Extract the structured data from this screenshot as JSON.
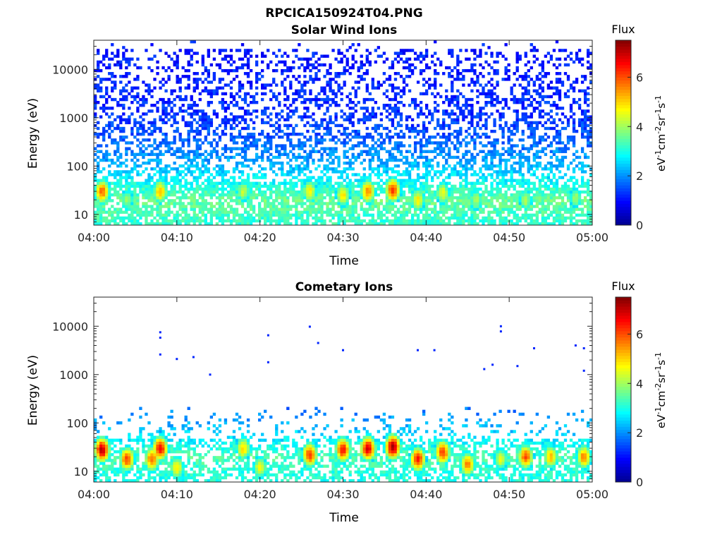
{
  "figure_title": "RPCICA150924T04.PNG",
  "colors": {
    "axis": "#262626",
    "colormap": [
      "#00008f",
      "#0000ff",
      "#0080ff",
      "#00ffff",
      "#80ff80",
      "#ffff00",
      "#ff8000",
      "#ff0000",
      "#800000"
    ]
  },
  "chart_data": [
    {
      "type": "heatmap",
      "title": "Solar Wind Ions",
      "xlabel": "Time",
      "ylabel": "Energy (eV)",
      "y_scale": "log",
      "xlim": [
        "04:00",
        "05:00"
      ],
      "ylim": [
        6,
        40000
      ],
      "xticks": [
        "04:00",
        "04:10",
        "04:20",
        "04:30",
        "04:40",
        "04:50",
        "05:00"
      ],
      "yticks": [
        10,
        100,
        1000,
        10000
      ],
      "ytick_labels": [
        "10",
        "100",
        "1000",
        "10000"
      ],
      "colorbar": {
        "label": "Flux",
        "units": "eV-1cm-2sr-1s-1",
        "range": [
          0,
          7.5
        ],
        "ticks": [
          0,
          2,
          4,
          6
        ]
      },
      "flux_profile": [
        {
          "energy_eV": 8,
          "level": 3.2
        },
        {
          "energy_eV": 20,
          "level": 3.6
        },
        {
          "energy_eV": 50,
          "level": 2.8
        },
        {
          "energy_eV": 100,
          "level": 2.3
        },
        {
          "energy_eV": 300,
          "level": 1.7
        },
        {
          "energy_eV": 1000,
          "level": 1.3
        },
        {
          "energy_eV": 10000,
          "level": 1.1
        }
      ],
      "bursts": [
        {
          "time": "04:01",
          "energy_eV": 30,
          "flux": 5.8
        },
        {
          "time": "04:04",
          "energy_eV": 20,
          "flux": 4.0
        },
        {
          "time": "04:08",
          "energy_eV": 30,
          "flux": 5.2
        },
        {
          "time": "04:18",
          "energy_eV": 30,
          "flux": 4.3
        },
        {
          "time": "04:26",
          "energy_eV": 30,
          "flux": 4.8
        },
        {
          "time": "04:30",
          "energy_eV": 25,
          "flux": 4.9
        },
        {
          "time": "04:33",
          "energy_eV": 30,
          "flux": 5.6
        },
        {
          "time": "04:36",
          "energy_eV": 32,
          "flux": 6.2
        },
        {
          "time": "04:39",
          "energy_eV": 20,
          "flux": 4.8
        },
        {
          "time": "04:42",
          "energy_eV": 28,
          "flux": 4.6
        },
        {
          "time": "04:46",
          "energy_eV": 20,
          "flux": 4.1
        },
        {
          "time": "04:52",
          "energy_eV": 20,
          "flux": 4.1
        },
        {
          "time": "04:58",
          "energy_eV": 22,
          "flux": 4.0
        }
      ]
    },
    {
      "type": "heatmap",
      "title": "Cometary Ions",
      "xlabel": "Time",
      "ylabel": "Energy (eV)",
      "y_scale": "log",
      "xlim": [
        "04:00",
        "05:00"
      ],
      "ylim": [
        6,
        40000
      ],
      "xticks": [
        "04:00",
        "04:10",
        "04:20",
        "04:30",
        "04:40",
        "04:50",
        "05:00"
      ],
      "yticks": [
        10,
        100,
        1000,
        10000
      ],
      "ytick_labels": [
        "10",
        "100",
        "1000",
        "10000"
      ],
      "colorbar": {
        "label": "Flux",
        "units": "eV-1cm-2sr-1s-1",
        "range": [
          0,
          7.5
        ],
        "ticks": [
          0,
          2,
          4,
          6
        ]
      },
      "flux_profile": [
        {
          "energy_eV": 8,
          "level": 3.0
        },
        {
          "energy_eV": 20,
          "level": 3.4
        },
        {
          "energy_eV": 50,
          "level": 2.6
        },
        {
          "energy_eV": 100,
          "level": 2.2
        },
        {
          "energy_eV": 200,
          "level": 1.8
        }
      ],
      "bursts": [
        {
          "time": "04:01",
          "energy_eV": 28,
          "flux": 7.0
        },
        {
          "time": "04:04",
          "energy_eV": 18,
          "flux": 6.0
        },
        {
          "time": "04:07",
          "energy_eV": 18,
          "flux": 5.8
        },
        {
          "time": "04:08",
          "energy_eV": 30,
          "flux": 6.6
        },
        {
          "time": "04:10",
          "energy_eV": 12,
          "flux": 4.8
        },
        {
          "time": "04:18",
          "energy_eV": 30,
          "flux": 5.0
        },
        {
          "time": "04:20",
          "energy_eV": 12,
          "flux": 4.6
        },
        {
          "time": "04:26",
          "energy_eV": 22,
          "flux": 6.2
        },
        {
          "time": "04:30",
          "energy_eV": 28,
          "flux": 6.4
        },
        {
          "time": "04:33",
          "energy_eV": 30,
          "flux": 6.8
        },
        {
          "time": "04:36",
          "energy_eV": 32,
          "flux": 7.2
        },
        {
          "time": "04:39",
          "energy_eV": 18,
          "flux": 6.4
        },
        {
          "time": "04:42",
          "energy_eV": 25,
          "flux": 6.2
        },
        {
          "time": "04:45",
          "energy_eV": 14,
          "flux": 5.6
        },
        {
          "time": "04:49",
          "energy_eV": 18,
          "flux": 4.5
        },
        {
          "time": "04:52",
          "energy_eV": 20,
          "flux": 6.0
        },
        {
          "time": "04:55",
          "energy_eV": 20,
          "flux": 5.2
        },
        {
          "time": "04:59",
          "energy_eV": 20,
          "flux": 5.6
        }
      ],
      "scattered_points": [
        {
          "time": "04:08",
          "energy_eV": 7500
        },
        {
          "time": "04:08",
          "energy_eV": 5800
        },
        {
          "time": "04:08",
          "energy_eV": 2600
        },
        {
          "time": "04:10",
          "energy_eV": 2100
        },
        {
          "time": "04:12",
          "energy_eV": 2300
        },
        {
          "time": "04:14",
          "energy_eV": 1000
        },
        {
          "time": "04:21",
          "energy_eV": 6500
        },
        {
          "time": "04:21",
          "energy_eV": 1800
        },
        {
          "time": "04:26",
          "energy_eV": 9800
        },
        {
          "time": "04:27",
          "energy_eV": 4500
        },
        {
          "time": "04:30",
          "energy_eV": 3200
        },
        {
          "time": "04:39",
          "energy_eV": 3200
        },
        {
          "time": "04:41",
          "energy_eV": 3200
        },
        {
          "time": "04:47",
          "energy_eV": 1300
        },
        {
          "time": "04:48",
          "energy_eV": 1600
        },
        {
          "time": "04:49",
          "energy_eV": 10000
        },
        {
          "time": "04:49",
          "energy_eV": 7800
        },
        {
          "time": "04:51",
          "energy_eV": 1500
        },
        {
          "time": "04:53",
          "energy_eV": 3500
        },
        {
          "time": "04:58",
          "energy_eV": 4000
        },
        {
          "time": "04:59",
          "energy_eV": 3500
        },
        {
          "time": "04:59",
          "energy_eV": 1200
        }
      ]
    }
  ]
}
